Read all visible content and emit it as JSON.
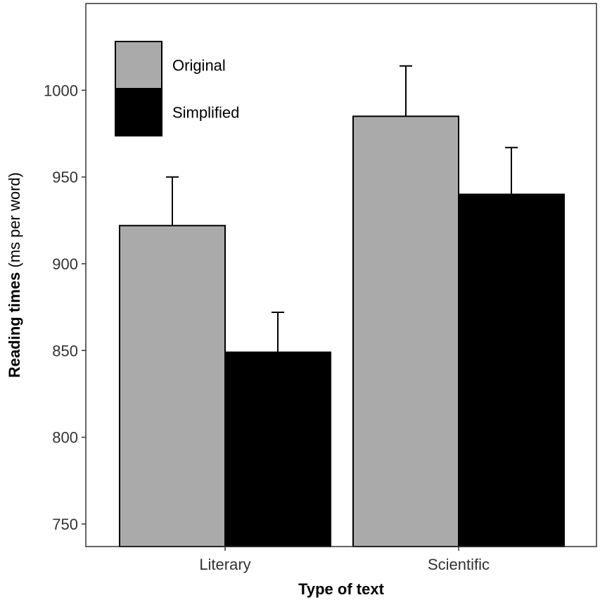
{
  "chart_data": {
    "type": "bar",
    "categories": [
      "Literary",
      "Scientific"
    ],
    "series": [
      {
        "name": "Original",
        "color": "#aaaaaa",
        "values": [
          922,
          985
        ],
        "error": [
          28,
          29
        ]
      },
      {
        "name": "Simplified",
        "color": "#000000",
        "values": [
          849,
          940
        ],
        "error": [
          23,
          27
        ]
      }
    ],
    "xlabel": "Type of text",
    "ylabel_bold": "Reading times",
    "ylabel_rest": " (ms per word)",
    "ylim": [
      737,
      1050
    ],
    "yticks": [
      750,
      800,
      850,
      900,
      950,
      1000
    ],
    "grid": false,
    "legend": "top-left"
  }
}
